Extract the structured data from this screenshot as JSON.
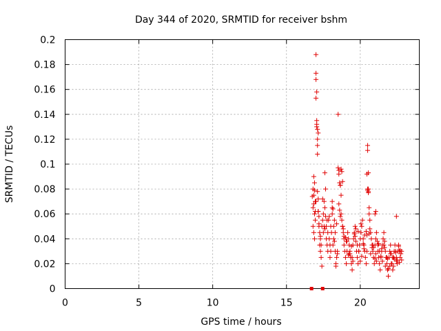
{
  "chart_data": {
    "type": "scatter",
    "title": "Day 344 of 2020, SRMTID for receiver bshm",
    "xlabel": "GPS time / hours",
    "ylabel": "SRMTID / TECUs",
    "xlim": [
      0,
      24
    ],
    "ylim": [
      0,
      0.2
    ],
    "xticks": [
      "0",
      "5",
      "10",
      "15",
      "20"
    ],
    "yticks": [
      "0",
      "0.02",
      "0.04",
      "0.06",
      "0.08",
      "0.1",
      "0.12",
      "0.14",
      "0.16",
      "0.18",
      "0.2"
    ],
    "grid": true,
    "marker": "+",
    "color": "#e00000",
    "series": [
      {
        "name": "bshm",
        "x": [
          16.8,
          16.8,
          16.8,
          16.85,
          16.85,
          16.85,
          16.9,
          16.9,
          16.9,
          16.95,
          16.95,
          17.0,
          17.0,
          17.0,
          17.0,
          17.05,
          17.05,
          17.05,
          17.1,
          17.1,
          17.1,
          17.15,
          17.15,
          17.2,
          17.2,
          17.25,
          17.25,
          17.3,
          17.3,
          17.35,
          17.4,
          17.4,
          17.45,
          17.5,
          17.5,
          17.55,
          17.6,
          17.6,
          17.65,
          17.7,
          17.7,
          17.75,
          17.8,
          17.8,
          17.85,
          17.9,
          17.95,
          18.0,
          18.0,
          18.05,
          18.1,
          18.1,
          18.15,
          18.2,
          18.2,
          18.25,
          18.3,
          18.3,
          18.35,
          18.4,
          18.45,
          18.5,
          18.5,
          18.55,
          18.6,
          18.65,
          18.7,
          18.7,
          18.75,
          18.8,
          18.85,
          18.9,
          18.9,
          18.95,
          19.0,
          19.05,
          19.1,
          19.15,
          19.2,
          19.25,
          19.3,
          19.35,
          19.4,
          19.45,
          19.5,
          19.55,
          19.6,
          19.65,
          19.7,
          19.75,
          19.8,
          19.85,
          19.9,
          19.95,
          20.0,
          20.05,
          20.1,
          20.15,
          20.2,
          20.25,
          20.3,
          20.35,
          20.4,
          20.45,
          20.5,
          20.5,
          20.55,
          20.55,
          20.6,
          20.6,
          20.65,
          20.7,
          20.75,
          20.8,
          20.85,
          20.9,
          20.95,
          21.0,
          21.05,
          21.1,
          21.15,
          21.2,
          21.25,
          21.3,
          21.35,
          21.4,
          21.45,
          21.5,
          21.55,
          21.6,
          21.65,
          21.7,
          21.75,
          21.8,
          21.85,
          21.9,
          21.95,
          22.0,
          22.05,
          22.1,
          22.15,
          22.2,
          22.25,
          22.3,
          22.35,
          22.4,
          22.45,
          22.5,
          22.55,
          22.6,
          22.65,
          22.7,
          22.75,
          22.8,
          16.75,
          17.45,
          17.05,
          17.1,
          17.1,
          17.15,
          18.55,
          20.5,
          20.55,
          16.85,
          16.95,
          17.2,
          17.3,
          17.6,
          17.9,
          18.1,
          18.4,
          18.6,
          18.8,
          19.0,
          19.2,
          19.4,
          19.6,
          19.8,
          20.0,
          20.2,
          20.4,
          20.6,
          20.8,
          21.0,
          21.2,
          21.4,
          21.6,
          21.8,
          22.0,
          22.2,
          22.4,
          22.6,
          22.8,
          17.55,
          17.75,
          18.25,
          18.45,
          18.65,
          18.85,
          19.05,
          19.25,
          19.45,
          19.65,
          19.85,
          20.05,
          20.25,
          20.45,
          20.65,
          20.85,
          21.05,
          21.25,
          21.45,
          21.65,
          21.85,
          22.05,
          22.25,
          22.45,
          22.65,
          18.7,
          18.75,
          18.8,
          18.65,
          20.45,
          20.5,
          20.55,
          21.0,
          21.05,
          22.45,
          16.9,
          17.0,
          17.15,
          17.35,
          17.65,
          17.95,
          18.15,
          18.35,
          18.55,
          18.9,
          19.1,
          19.3,
          19.5,
          19.7,
          19.9,
          20.1,
          20.3,
          20.7,
          20.9,
          21.1,
          21.3,
          21.5,
          21.7,
          21.9,
          22.1,
          22.3,
          22.5,
          22.7
        ],
        "y": [
          0.08,
          0.065,
          0.05,
          0.075,
          0.09,
          0.045,
          0.06,
          0.085,
          0.04,
          0.07,
          0.055,
          0.188,
          0.173,
          0.168,
          0.153,
          0.158,
          0.135,
          0.132,
          0.115,
          0.108,
          0.078,
          0.072,
          0.062,
          0.058,
          0.05,
          0.045,
          0.035,
          0.04,
          0.03,
          0.025,
          0.018,
          0.05,
          0.055,
          0.045,
          0.06,
          0.07,
          0.093,
          0.065,
          0.08,
          0.04,
          0.05,
          0.035,
          0.03,
          0.045,
          0.055,
          0.04,
          0.035,
          0.03,
          0.05,
          0.045,
          0.06,
          0.07,
          0.035,
          0.04,
          0.05,
          0.055,
          0.045,
          0.03,
          0.02,
          0.025,
          0.03,
          0.14,
          0.097,
          0.095,
          0.085,
          0.083,
          0.075,
          0.06,
          0.055,
          0.05,
          0.045,
          0.04,
          0.035,
          0.03,
          0.025,
          0.02,
          0.03,
          0.045,
          0.04,
          0.035,
          0.03,
          0.025,
          0.02,
          0.015,
          0.035,
          0.04,
          0.045,
          0.05,
          0.038,
          0.03,
          0.025,
          0.02,
          0.03,
          0.035,
          0.04,
          0.045,
          0.05,
          0.055,
          0.04,
          0.035,
          0.03,
          0.025,
          0.02,
          0.03,
          0.115,
          0.111,
          0.093,
          0.08,
          0.065,
          0.06,
          0.055,
          0.045,
          0.04,
          0.035,
          0.03,
          0.025,
          0.02,
          0.035,
          0.04,
          0.045,
          0.038,
          0.03,
          0.025,
          0.02,
          0.015,
          0.025,
          0.03,
          0.035,
          0.04,
          0.045,
          0.038,
          0.03,
          0.025,
          0.02,
          0.015,
          0.01,
          0.025,
          0.03,
          0.035,
          0.028,
          0.02,
          0.015,
          0.025,
          0.03,
          0.035,
          0.03,
          0.025,
          0.02,
          0.03,
          0.035,
          0.03,
          0.025,
          0.028,
          0.03,
          0.074,
          0.072,
          0.13,
          0.128,
          0.12,
          0.125,
          0.092,
          0.079,
          0.077,
          0.068,
          0.062,
          0.052,
          0.042,
          0.048,
          0.058,
          0.065,
          0.052,
          0.063,
          0.05,
          0.041,
          0.027,
          0.034,
          0.044,
          0.035,
          0.022,
          0.036,
          0.046,
          0.044,
          0.033,
          0.024,
          0.035,
          0.026,
          0.035,
          0.025,
          0.018,
          0.025,
          0.029,
          0.034,
          0.023,
          0.05,
          0.055,
          0.038,
          0.028,
          0.058,
          0.048,
          0.038,
          0.028,
          0.025,
          0.042,
          0.046,
          0.052,
          0.032,
          0.043,
          0.048,
          0.035,
          0.028,
          0.036,
          0.032,
          0.033,
          0.024,
          0.028,
          0.018,
          0.022,
          0.021,
          0.096,
          0.094,
          0.086,
          0.083,
          0.092,
          0.08,
          0.078,
          0.06,
          0.062,
          0.058,
          0.079,
          0.07,
          0.062,
          0.035,
          0.058,
          0.025,
          0.064,
          0.018,
          0.068,
          0.042,
          0.038,
          0.028,
          0.022,
          0.048,
          0.03,
          0.026,
          0.043,
          0.028,
          0.033,
          0.022,
          0.03,
          0.022,
          0.018,
          0.016,
          0.02,
          0.024,
          0.023,
          0.031
        ]
      }
    ]
  }
}
